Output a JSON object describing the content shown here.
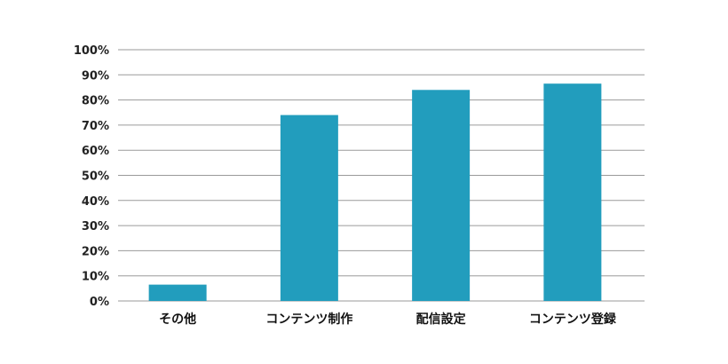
{
  "chart_data": {
    "type": "bar",
    "categories": [
      "その他",
      "コンテンツ制作",
      "配信設定",
      "コンテンツ登録"
    ],
    "values": [
      6.5,
      74,
      84,
      86.5
    ],
    "ylim": [
      0,
      100
    ],
    "y_ticks": [
      "0%",
      "10%",
      "20%",
      "30%",
      "40%",
      "50%",
      "60%",
      "70%",
      "80%",
      "90%",
      "100%"
    ],
    "grid": true,
    "bar_color": "#229dbd",
    "grid_color": "#9a9a9a"
  }
}
